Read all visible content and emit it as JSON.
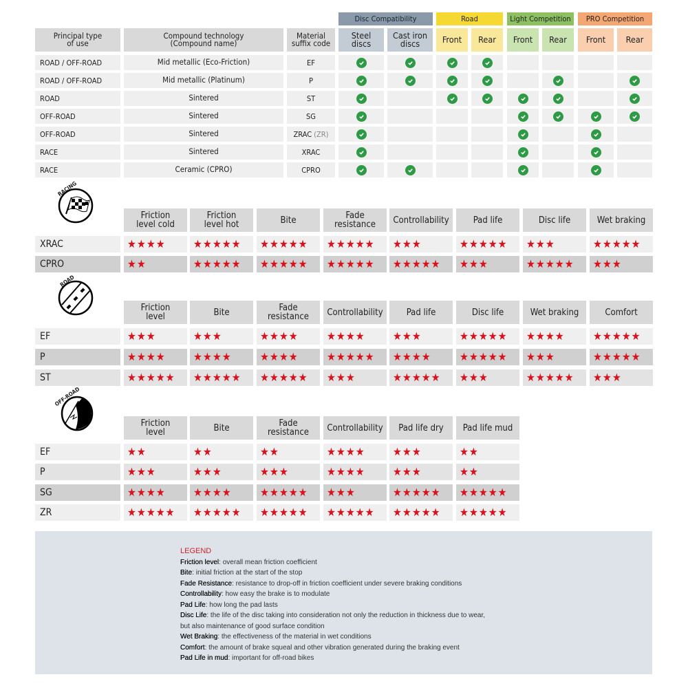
{
  "colors": {
    "check": "#2f9a45",
    "star": "#d8131d",
    "header": "#d9d9d9"
  },
  "compat": {
    "groups": [
      {
        "label": "Disc Compatibility",
        "bg": "#8a9aab",
        "sub": "#c3ccd5"
      },
      {
        "label": "Road",
        "bg": "#f6d832",
        "sub": "#f9e79a"
      },
      {
        "label": "Light Competition",
        "bg": "#8dc060",
        "sub": "#c9e3b1"
      },
      {
        "label": "PRO Competition",
        "bg": "#f4a673",
        "sub": "#f9cfb0"
      }
    ],
    "headers": [
      "Principal type\nof use",
      "Compound technology\n(Compound name)",
      "Material\nsuffix code",
      "Steel\ndiscs",
      "Cast iron\ndiscs",
      "Front",
      "Rear",
      "Front",
      "Rear",
      "Front",
      "Rear"
    ],
    "rows": [
      {
        "use": "ROAD / OFF-ROAD",
        "compound": "Mid metallic (Eco-Friction)",
        "code": "EF",
        "code_extra": "",
        "checks": [
          1,
          1,
          1,
          1,
          0,
          0,
          0,
          0
        ]
      },
      {
        "use": "ROAD / OFF-ROAD",
        "compound": "Mid metallic (Platinum)",
        "code": "P",
        "code_extra": "",
        "checks": [
          1,
          1,
          1,
          1,
          0,
          1,
          0,
          1
        ]
      },
      {
        "use": "ROAD",
        "compound": "Sintered",
        "code": "ST",
        "code_extra": "",
        "checks": [
          1,
          0,
          1,
          1,
          1,
          1,
          0,
          1
        ]
      },
      {
        "use": "OFF-ROAD",
        "compound": "Sintered",
        "code": "SG",
        "code_extra": "",
        "checks": [
          1,
          0,
          0,
          0,
          1,
          1,
          1,
          1
        ]
      },
      {
        "use": "OFF-ROAD",
        "compound": "Sintered",
        "code": "ZRAC",
        "code_extra": "(ZR)",
        "checks": [
          1,
          0,
          0,
          0,
          1,
          0,
          1,
          0
        ]
      },
      {
        "use": "RACE",
        "compound": "Sintered",
        "code": "XRAC",
        "code_extra": "",
        "checks": [
          1,
          0,
          0,
          0,
          1,
          0,
          1,
          0
        ]
      },
      {
        "use": "RACE",
        "compound": "Ceramic (CPRO)",
        "code": "CPRO",
        "code_extra": "",
        "checks": [
          1,
          1,
          0,
          0,
          1,
          0,
          1,
          0
        ]
      }
    ]
  },
  "ratings": [
    {
      "badge": "RACING",
      "icon": "checkered-flag-icon",
      "columns": [
        "Friction\nlevel cold",
        "Friction\nlevel hot",
        "Bite",
        "Fade\nresistance",
        "Controllability",
        "Pad life",
        "Disc life",
        "Wet braking"
      ],
      "rows": [
        {
          "name": "XRAC",
          "tone": "rw",
          "stars": [
            4,
            5,
            5,
            5,
            3,
            5,
            3,
            5
          ]
        },
        {
          "name": "CPRO",
          "tone": "dk",
          "stars": [
            2,
            5,
            5,
            5,
            5,
            3,
            5,
            3
          ]
        }
      ]
    },
    {
      "badge": "ROAD",
      "icon": "road-icon",
      "columns": [
        "Friction\nlevel",
        "Bite",
        "Fade\nresistance",
        "Controllability",
        "Pad life",
        "Disc life",
        "Wet braking",
        "Comfort"
      ],
      "rows": [
        {
          "name": "EF",
          "tone": "rw",
          "stars": [
            3,
            3,
            4,
            4,
            3,
            5,
            4,
            5
          ]
        },
        {
          "name": "P",
          "tone": "dk",
          "stars": [
            4,
            4,
            4,
            5,
            4,
            5,
            3,
            5
          ]
        },
        {
          "name": "ST",
          "tone": "rw2",
          "stars": [
            5,
            5,
            5,
            3,
            5,
            3,
            5,
            3
          ]
        }
      ]
    },
    {
      "badge": "OFF-ROAD",
      "icon": "off-road-icon",
      "columns": [
        "Friction\nlevel",
        "Bite",
        "Fade\nresistance",
        "Controllability",
        "Pad life dry",
        "Pad life mud"
      ],
      "rows": [
        {
          "name": "EF",
          "tone": "rw",
          "stars": [
            2,
            2,
            2,
            4,
            3,
            2
          ]
        },
        {
          "name": "P",
          "tone": "rw2",
          "stars": [
            3,
            3,
            3,
            4,
            3,
            2
          ]
        },
        {
          "name": "SG",
          "tone": "dk",
          "stars": [
            4,
            4,
            5,
            3,
            5,
            5
          ]
        },
        {
          "name": "ZR",
          "tone": "rw",
          "stars": [
            5,
            5,
            5,
            5,
            5,
            5
          ]
        }
      ]
    }
  ],
  "legend": {
    "title": "LEGEND",
    "items": [
      {
        "term": "Friction level",
        "desc": ": overall mean friction coefficient"
      },
      {
        "term": "Bite",
        "desc": ": initial friction at the start of the stop"
      },
      {
        "term": "Fade Resistance",
        "desc": ": resistance to drop-off in friction coefficient under severe braking conditions"
      },
      {
        "term": "Controllability",
        "desc": ": how easy the brake is to modulate"
      },
      {
        "term": "Pad Life",
        "desc": ": how long the pad lasts"
      },
      {
        "term": "Disc Life",
        "desc": ": the life of the disc taking into consideration not only the reduction in thickness due to wear,"
      },
      {
        "term": "",
        "desc": "but also maintenance of good surface condition"
      },
      {
        "term": "Wet Braking",
        "desc": ": the effectiveness of the material in wet conditions"
      },
      {
        "term": "Comfort",
        "desc": ": the amount of brake squeal and other vibration generated during the braking event"
      },
      {
        "term": "Pad Life in mud",
        "desc": ": important for off-road bikes"
      }
    ]
  }
}
